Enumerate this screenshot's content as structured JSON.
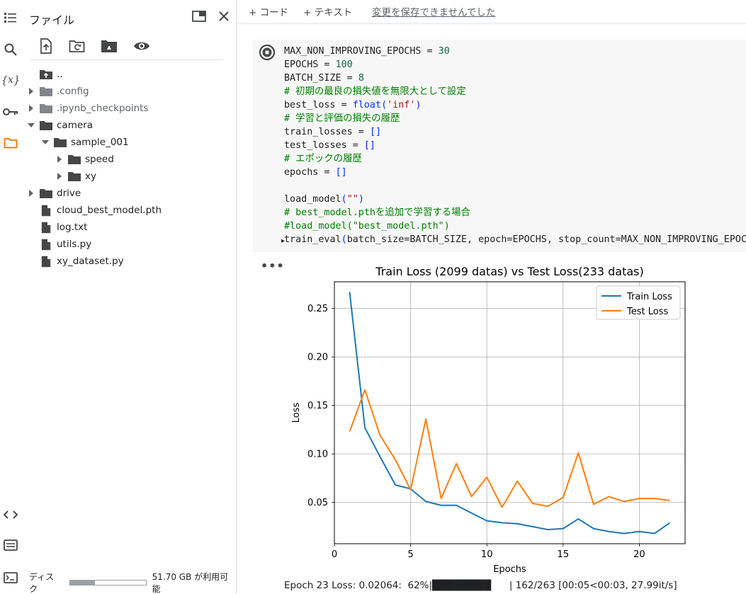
{
  "files_panel": {
    "title": "ファイル",
    "tree": [
      {
        "label": "..",
        "icon": "upload-folder-icon",
        "indent": 0,
        "caret": "none"
      },
      {
        "label": ".config",
        "icon": "folder-icon",
        "indent": 0,
        "caret": "right",
        "dim": true
      },
      {
        "label": ".ipynb_checkpoints",
        "icon": "folder-icon",
        "indent": 0,
        "caret": "right",
        "dim": true
      },
      {
        "label": "camera",
        "icon": "folder-icon",
        "indent": 0,
        "caret": "down"
      },
      {
        "label": "sample_001",
        "icon": "folder-icon",
        "indent": 1,
        "caret": "down"
      },
      {
        "label": "speed",
        "icon": "folder-icon",
        "indent": 2,
        "caret": "right"
      },
      {
        "label": "xy",
        "icon": "folder-icon",
        "indent": 2,
        "caret": "right"
      },
      {
        "label": "drive",
        "icon": "folder-icon",
        "indent": 0,
        "caret": "right"
      },
      {
        "label": "cloud_best_model.pth",
        "icon": "file-icon",
        "indent": 0,
        "caret": "none"
      },
      {
        "label": "log.txt",
        "icon": "file-icon",
        "indent": 0,
        "caret": "none"
      },
      {
        "label": "utils.py",
        "icon": "file-icon",
        "indent": 0,
        "caret": "none"
      },
      {
        "label": "xy_dataset.py",
        "icon": "file-icon",
        "indent": 0,
        "caret": "none"
      }
    ],
    "disk": {
      "label": "ディスク",
      "used_fraction": 0.33,
      "available": "51.70 GB が利用可能"
    }
  },
  "top_bar": {
    "add_code": "+ コード",
    "add_text": "+ テキスト",
    "save_status": "変更を保存できませんでした"
  },
  "code_lines": [
    [
      {
        "t": "MAX_NON_IMPROVING_EPOCHS = "
      },
      {
        "t": "30",
        "c": "num"
      }
    ],
    [
      {
        "t": "EPOCHS = "
      },
      {
        "t": "100",
        "c": "num"
      }
    ],
    [
      {
        "t": "BATCH_SIZE = "
      },
      {
        "t": "8",
        "c": "num"
      }
    ],
    [
      {
        "t": "# 初期の最良の損失値を無限大として設定",
        "c": "com"
      }
    ],
    [
      {
        "t": "best_loss = "
      },
      {
        "t": "float",
        "c": "fn"
      },
      {
        "t": "(",
        "c": "br"
      },
      {
        "t": "'inf'",
        "c": "str"
      },
      {
        "t": ")",
        "c": "br"
      }
    ],
    [
      {
        "t": "# 学習と評価の損失の履歴",
        "c": "com"
      }
    ],
    [
      {
        "t": "train_losses = "
      },
      {
        "t": "[]",
        "c": "br"
      }
    ],
    [
      {
        "t": "test_losses = "
      },
      {
        "t": "[]",
        "c": "br"
      }
    ],
    [
      {
        "t": "# エポックの履歴",
        "c": "com"
      }
    ],
    [
      {
        "t": "epochs = "
      },
      {
        "t": "[]",
        "c": "br"
      }
    ],
    [
      {
        "t": ""
      }
    ],
    [
      {
        "t": "load_model"
      },
      {
        "t": "(",
        "c": "br"
      },
      {
        "t": "\"\"",
        "c": "str"
      },
      {
        "t": ")",
        "c": "br"
      }
    ],
    [
      {
        "t": "# best_model.pthを追加で学習する場合",
        "c": "com"
      }
    ],
    [
      {
        "t": "#load_model(\"best_model.pth\")",
        "c": "com"
      }
    ],
    [
      {
        "t": "train_eval"
      },
      {
        "t": "(",
        "c": "br"
      },
      {
        "t": "batch_size=BATCH_SIZE, epoch=EPOCHS, stop_count=MAX_NON_IMPROVING_EPOCHS"
      }
    ]
  ],
  "output_menu": "•••",
  "progress_text": "Epoch 23 Loss: 0.02064:  62%|████████      | 162/263 [00:05<00:03, 27.99it/s]",
  "chart_data": {
    "type": "line",
    "title": "Train Loss (2099 datas) vs Test Loss(233 datas)",
    "xlabel": "Epochs",
    "ylabel": "Loss",
    "x": [
      1,
      2,
      3,
      4,
      5,
      6,
      7,
      8,
      9,
      10,
      11,
      12,
      13,
      14,
      15,
      16,
      17,
      18,
      19,
      20,
      21,
      22
    ],
    "series": [
      {
        "name": "Train Loss",
        "color": "#1f77b4",
        "values": [
          0.267,
          0.127,
          0.097,
          0.068,
          0.064,
          0.051,
          0.047,
          0.047,
          0.039,
          0.031,
          0.029,
          0.028,
          0.025,
          0.022,
          0.023,
          0.033,
          0.023,
          0.02,
          0.018,
          0.02,
          0.018,
          0.029
        ]
      },
      {
        "name": "Test Loss",
        "color": "#ff7f0e",
        "values": [
          0.123,
          0.166,
          0.119,
          0.094,
          0.063,
          0.136,
          0.054,
          0.09,
          0.056,
          0.076,
          0.045,
          0.072,
          0.049,
          0.046,
          0.055,
          0.101,
          0.048,
          0.056,
          0.051,
          0.054,
          0.054,
          0.052
        ]
      }
    ],
    "xlim": [
      0,
      23
    ],
    "ylim": [
      0.0074,
      0.2775
    ],
    "xticks": [
      0,
      5,
      10,
      15,
      20
    ],
    "yticks": [
      0.05,
      0.1,
      0.15,
      0.2,
      0.25
    ],
    "ytick_labels": [
      "0.05",
      "0.10",
      "0.15",
      "0.20",
      "0.25"
    ],
    "grid": true,
    "legend_position": "top-right"
  }
}
